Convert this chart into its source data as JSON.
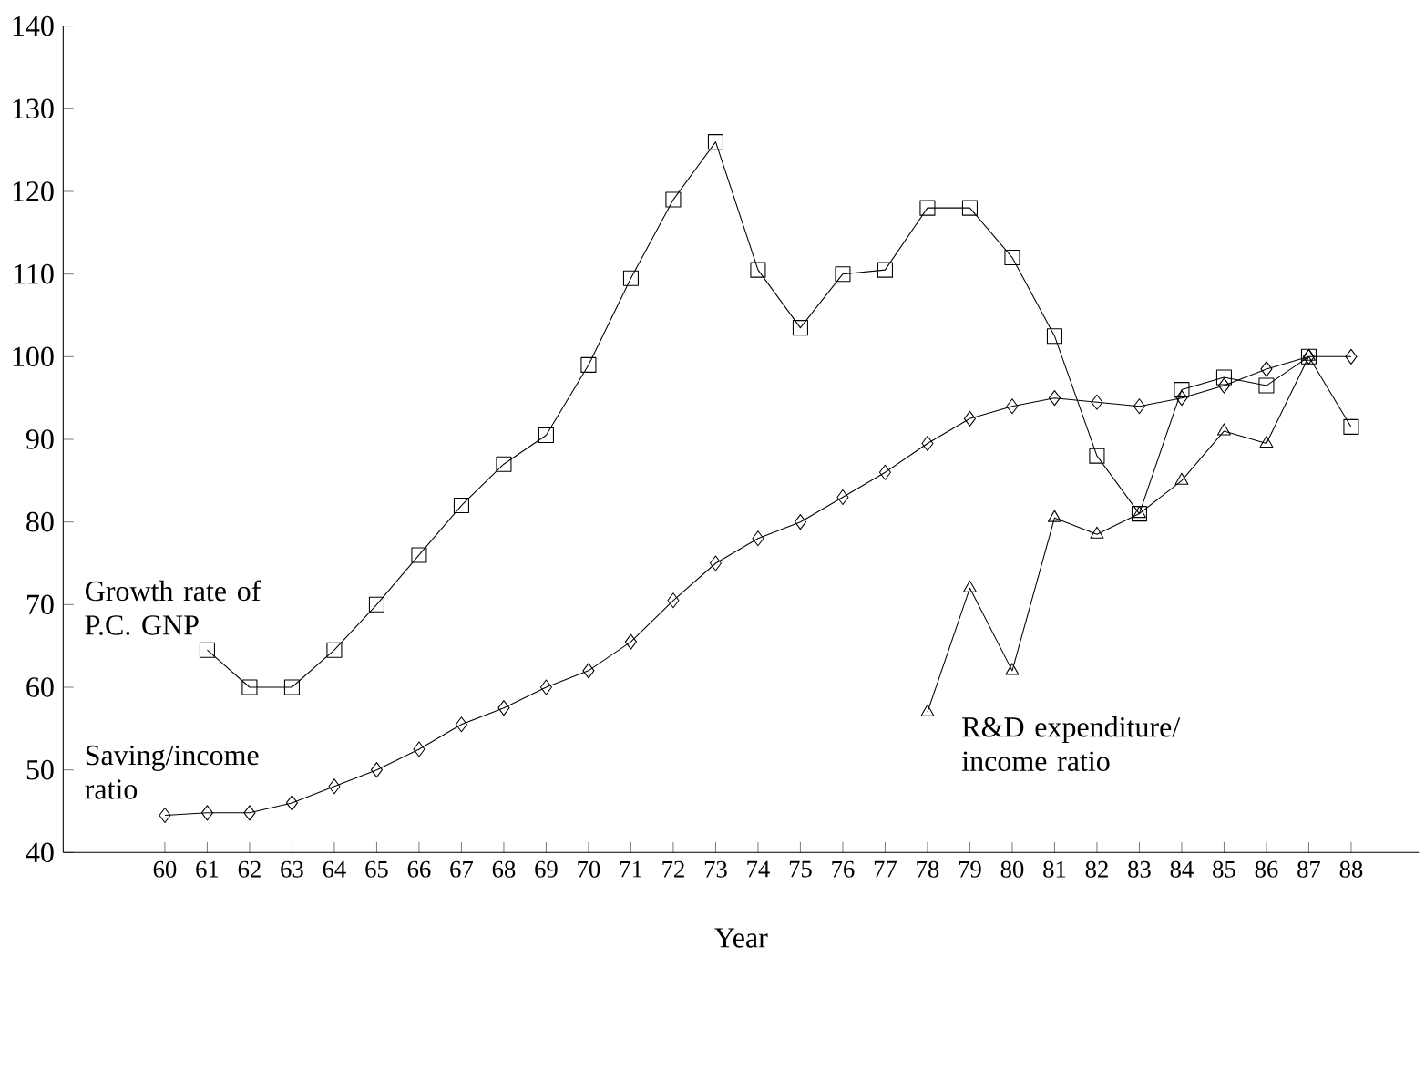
{
  "chart_data": {
    "type": "line",
    "xlabel": "Year",
    "xlim": [
      57.6,
      89.6
    ],
    "ylim": [
      40,
      140
    ],
    "xticks": [
      60,
      61,
      62,
      63,
      64,
      65,
      66,
      67,
      68,
      69,
      70,
      71,
      72,
      73,
      74,
      75,
      76,
      77,
      78,
      79,
      80,
      81,
      82,
      83,
      84,
      85,
      86,
      87,
      88
    ],
    "yticks": [
      40,
      50,
      60,
      70,
      80,
      90,
      100,
      110,
      120,
      130,
      140
    ],
    "legend": false,
    "grid": false,
    "series": [
      {
        "name": "Growth rate of P.C. GNP",
        "color": "#000000",
        "marker": "square",
        "x": [
          61,
          62,
          63,
          64,
          65,
          66,
          67,
          68,
          69,
          70,
          71,
          72,
          73,
          74,
          75,
          76,
          77,
          78,
          79,
          80,
          81,
          82,
          83,
          84,
          85,
          86,
          87,
          88
        ],
        "values": [
          64.5,
          60,
          60,
          64.5,
          70,
          76,
          82,
          87,
          90.5,
          99,
          109.5,
          119,
          126,
          110.5,
          103.5,
          110,
          110.5,
          118,
          118,
          112,
          102.5,
          88,
          81,
          96,
          97.5,
          96.5,
          100,
          91.5
        ]
      },
      {
        "name": "Saving/income ratio",
        "color": "#000000",
        "marker": "diamond",
        "x": [
          60,
          61,
          62,
          63,
          64,
          65,
          66,
          67,
          68,
          69,
          70,
          71,
          72,
          73,
          74,
          75,
          76,
          77,
          78,
          79,
          80,
          81,
          82,
          83,
          84,
          85,
          86,
          87,
          88
        ],
        "values": [
          44.5,
          44.8,
          44.8,
          46,
          48,
          50,
          52.5,
          55.5,
          57.5,
          60,
          62,
          65.5,
          70.5,
          75,
          78,
          80,
          83,
          86,
          89.5,
          92.5,
          94,
          95,
          94.5,
          94,
          95,
          96.5,
          98.5,
          100,
          100
        ]
      },
      {
        "name": "R&D expenditure/ income ratio",
        "color": "#000000",
        "marker": "triangle",
        "x": [
          78,
          79,
          80,
          81,
          82,
          83,
          84,
          85,
          86,
          87
        ],
        "values": [
          57,
          72,
          62,
          80.5,
          78.5,
          81,
          85,
          91,
          89.5,
          100
        ]
      }
    ]
  }
}
